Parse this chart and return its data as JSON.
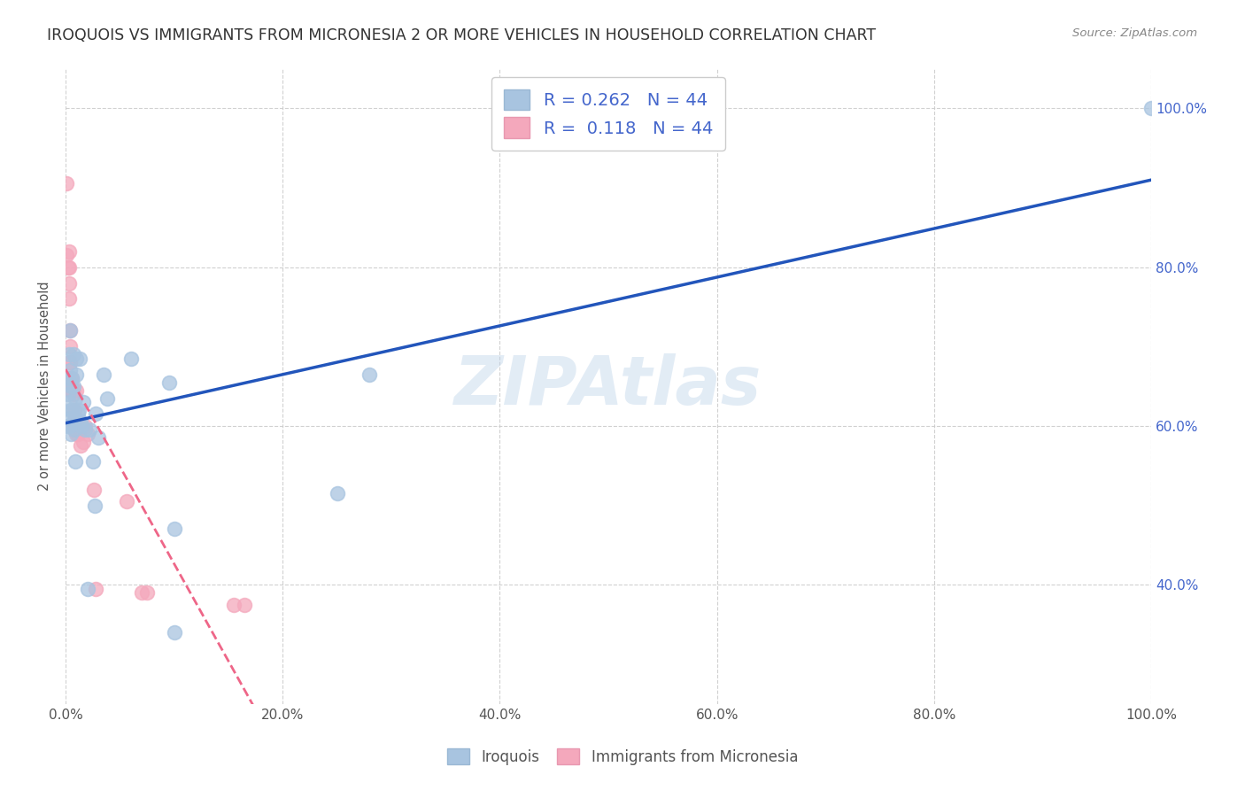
{
  "title": "IROQUOIS VS IMMIGRANTS FROM MICRONESIA 2 OR MORE VEHICLES IN HOUSEHOLD CORRELATION CHART",
  "source": "Source: ZipAtlas.com",
  "ylabel": "2 or more Vehicles in Household",
  "legend_blue_r": "R = 0.262",
  "legend_blue_n": "N = 44",
  "legend_pink_r": "R =  0.118",
  "legend_pink_n": "N = 44",
  "legend_label_blue": "Iroquois",
  "legend_label_pink": "Immigrants from Micronesia",
  "blue_color": "#a8c4e0",
  "pink_color": "#f4a8bc",
  "blue_line_color": "#2255bb",
  "pink_line_color": "#ee6688",
  "background_color": "#FFFFFF",
  "grid_color": "#cccccc",
  "title_color": "#333333",
  "axis_text_color": "#4466cc",
  "watermark": "ZIPAtlas",
  "iroquois_x": [
    0.001,
    0.002,
    0.002,
    0.003,
    0.003,
    0.003,
    0.004,
    0.004,
    0.004,
    0.005,
    0.005,
    0.005,
    0.006,
    0.006,
    0.007,
    0.007,
    0.008,
    0.008,
    0.009,
    0.009,
    0.01,
    0.01,
    0.011,
    0.012,
    0.013,
    0.014,
    0.015,
    0.016,
    0.018,
    0.02,
    0.022,
    0.025,
    0.027,
    0.028,
    0.03,
    0.035,
    0.038,
    0.06,
    0.095,
    0.1,
    0.1,
    0.25,
    0.28,
    1.0
  ],
  "iroquois_y": [
    0.6,
    0.64,
    0.66,
    0.69,
    0.63,
    0.61,
    0.72,
    0.67,
    0.6,
    0.65,
    0.62,
    0.59,
    0.66,
    0.62,
    0.69,
    0.65,
    0.61,
    0.595,
    0.635,
    0.555,
    0.665,
    0.685,
    0.615,
    0.62,
    0.685,
    0.605,
    0.6,
    0.63,
    0.595,
    0.395,
    0.595,
    0.555,
    0.5,
    0.615,
    0.585,
    0.665,
    0.635,
    0.685,
    0.655,
    0.47,
    0.34,
    0.515,
    0.665,
    1.0
  ],
  "micronesia_x": [
    0.001,
    0.001,
    0.002,
    0.003,
    0.003,
    0.003,
    0.003,
    0.004,
    0.004,
    0.004,
    0.004,
    0.005,
    0.005,
    0.005,
    0.005,
    0.006,
    0.006,
    0.006,
    0.007,
    0.007,
    0.007,
    0.008,
    0.008,
    0.008,
    0.009,
    0.009,
    0.009,
    0.01,
    0.01,
    0.011,
    0.011,
    0.012,
    0.013,
    0.014,
    0.016,
    0.018,
    0.02,
    0.026,
    0.028,
    0.056,
    0.07,
    0.075,
    0.155,
    0.165
  ],
  "micronesia_y": [
    0.905,
    0.815,
    0.8,
    0.82,
    0.8,
    0.78,
    0.76,
    0.72,
    0.7,
    0.68,
    0.68,
    0.66,
    0.65,
    0.65,
    0.65,
    0.66,
    0.645,
    0.645,
    0.64,
    0.645,
    0.6,
    0.62,
    0.605,
    0.595,
    0.6,
    0.61,
    0.6,
    0.59,
    0.645,
    0.6,
    0.59,
    0.6,
    0.595,
    0.575,
    0.58,
    0.6,
    0.59,
    0.52,
    0.395,
    0.505,
    0.39,
    0.39,
    0.375,
    0.375
  ],
  "xlim": [
    0.0,
    1.0
  ],
  "ylim": [
    0.25,
    1.05
  ],
  "xticks": [
    0.0,
    0.2,
    0.4,
    0.6,
    0.8,
    1.0
  ],
  "xticklabels": [
    "0.0%",
    "20.0%",
    "40.0%",
    "60.0%",
    "80.0%",
    "100.0%"
  ],
  "yticks": [
    0.4,
    0.6,
    0.8,
    1.0
  ],
  "yticklabels_right": [
    "40.0%",
    "60.0%",
    "80.0%",
    "100.0%"
  ]
}
